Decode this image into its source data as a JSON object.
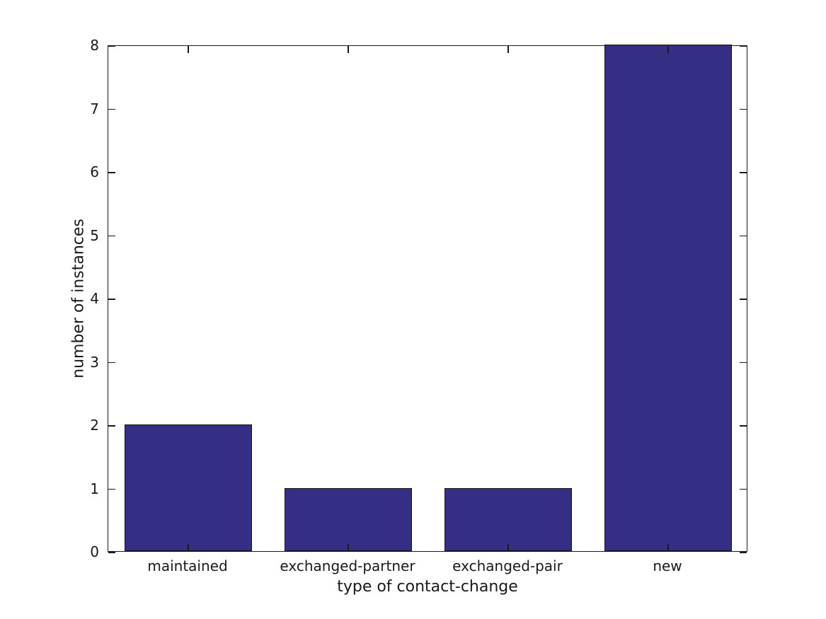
{
  "chart_data": {
    "type": "bar",
    "title": "",
    "categories": [
      "maintained",
      "exchanged-partner",
      "exchanged-pair",
      "new"
    ],
    "values": [
      2,
      1,
      1,
      8
    ],
    "xlabel": "type of contact-change",
    "ylabel": "number of instances",
    "ylim": [
      0,
      8
    ],
    "yticks": [
      0,
      1,
      2,
      3,
      4,
      5,
      6,
      7,
      8
    ],
    "bar_color": "#342E85",
    "bar_edge_color": "#141414",
    "axis_color": "#1a1a1a",
    "grid": false,
    "legend": null,
    "tick_direction": "in",
    "ticks_on_all_sides": true,
    "bar_width_fraction": 0.8
  }
}
